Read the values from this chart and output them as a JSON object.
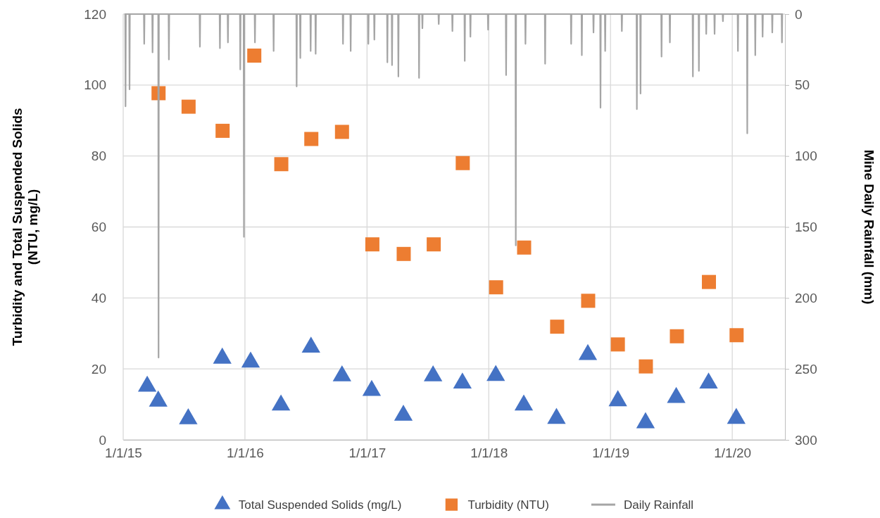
{
  "chart_data": {
    "type": "scatter",
    "ylabel": "Turbidity and Total Suspended Solids\n(NTU, mg/L)",
    "y2label": "Mine Daily Rainfall (mm)",
    "xlim": [
      "2015-01-01",
      "2020-06-07"
    ],
    "xticks": [
      {
        "value": "2015-01-01",
        "label": "1/1/15"
      },
      {
        "value": "2016-01-01",
        "label": "1/1/16"
      },
      {
        "value": "2017-01-01",
        "label": "1/1/17"
      },
      {
        "value": "2018-01-01",
        "label": "1/1/18"
      },
      {
        "value": "2019-01-01",
        "label": "1/1/19"
      },
      {
        "value": "2020-01-01",
        "label": "1/1/20"
      }
    ],
    "ylim": [
      0,
      120
    ],
    "yticks": [
      0,
      20,
      40,
      60,
      80,
      100,
      120
    ],
    "y2lim": [
      300,
      0
    ],
    "y2ticks": [
      0,
      50,
      100,
      150,
      200,
      250,
      300
    ],
    "grid": true,
    "legend": "bottom",
    "series": [
      {
        "name": "Total Suspended Solids (mg/L)",
        "marker": "triangle",
        "color": "#4472c4",
        "x": [
          "2015-03-14",
          "2015-04-16",
          "2015-07-15",
          "2015-10-25",
          "2016-01-18",
          "2016-04-18",
          "2016-07-17",
          "2016-10-18",
          "2017-01-15",
          "2017-04-20",
          "2017-07-18",
          "2017-10-14",
          "2018-01-22",
          "2018-04-16",
          "2018-07-23",
          "2018-10-25",
          "2019-01-23",
          "2019-04-16",
          "2019-07-17",
          "2019-10-22",
          "2020-01-13"
        ],
        "values": [
          15.1,
          10.9,
          5.9,
          23.0,
          21.9,
          9.8,
          26.1,
          18.0,
          13.9,
          6.9,
          18.0,
          16.0,
          18.1,
          9.8,
          6.0,
          24.0,
          11.0,
          4.8,
          11.9,
          16.0,
          6.0
        ]
      },
      {
        "name": "Turbidity (NTU)",
        "marker": "square",
        "color": "#ed7d31",
        "x": [
          "2015-04-17",
          "2015-07-16",
          "2015-10-26",
          "2016-01-29",
          "2016-04-19",
          "2016-07-18",
          "2016-10-18",
          "2017-01-17",
          "2017-04-21",
          "2017-07-20",
          "2017-10-15",
          "2018-01-23",
          "2018-04-17",
          "2018-07-25",
          "2018-10-26",
          "2019-01-23",
          "2019-04-17",
          "2019-07-19",
          "2019-10-23",
          "2020-01-14"
        ],
        "values": [
          97.7,
          93.9,
          87.1,
          108.3,
          77.7,
          84.8,
          86.8,
          55.1,
          52.4,
          55.1,
          78.0,
          43.0,
          54.2,
          31.9,
          39.2,
          26.9,
          20.7,
          29.2,
          44.5,
          29.5
        ]
      },
      {
        "name": "Daily Rainfall",
        "type": "line",
        "marker": "none",
        "axis": "y2",
        "color": "#a5a5a5",
        "x": [
          "2015-01-07",
          "2015-01-08",
          "2015-01-09",
          "2015-01-19",
          "2015-01-20",
          "2015-01-21",
          "2015-03-04",
          "2015-03-05",
          "2015-03-06",
          "2015-03-29",
          "2015-03-30",
          "2015-03-31",
          "2015-04-16",
          "2015-04-17",
          "2015-04-18",
          "2015-05-17",
          "2015-05-18",
          "2015-05-19",
          "2015-08-18",
          "2015-08-19",
          "2015-08-20",
          "2015-10-17",
          "2015-10-18",
          "2015-10-19",
          "2015-11-10",
          "2015-11-11",
          "2015-11-12",
          "2015-12-17",
          "2015-12-18",
          "2015-12-19",
          "2015-12-28",
          "2015-12-29",
          "2015-12-30",
          "2016-01-30",
          "2016-01-31",
          "2016-02-01",
          "2016-03-26",
          "2016-03-27",
          "2016-03-28",
          "2016-06-03",
          "2016-06-04",
          "2016-06-05",
          "2016-06-14",
          "2016-06-15",
          "2016-06-16",
          "2016-07-15",
          "2016-07-16",
          "2016-07-17",
          "2016-07-30",
          "2016-07-31",
          "2016-08-01",
          "2016-10-20",
          "2016-10-21",
          "2016-10-22",
          "2016-11-12",
          "2016-11-13",
          "2016-11-14",
          "2017-01-04",
          "2017-01-05",
          "2017-01-06",
          "2017-01-22",
          "2017-01-23",
          "2017-01-24",
          "2017-03-02",
          "2017-03-03",
          "2017-03-04",
          "2017-03-16",
          "2017-03-17",
          "2017-03-18",
          "2017-04-04",
          "2017-04-05",
          "2017-04-06",
          "2017-06-05",
          "2017-06-06",
          "2017-06-07",
          "2017-06-15",
          "2017-06-16",
          "2017-06-17",
          "2017-08-03",
          "2017-08-04",
          "2017-08-05",
          "2017-09-13",
          "2017-09-14",
          "2017-09-15",
          "2017-10-20",
          "2017-10-21",
          "2017-10-22",
          "2017-11-06",
          "2017-11-07",
          "2017-11-08",
          "2017-12-29",
          "2017-12-30",
          "2017-12-31",
          "2018-02-21",
          "2018-02-22",
          "2018-02-23",
          "2018-03-22",
          "2018-03-23",
          "2018-03-24",
          "2018-04-20",
          "2018-04-21",
          "2018-04-22",
          "2018-06-18",
          "2018-06-19",
          "2018-06-20",
          "2018-09-04",
          "2018-09-05",
          "2018-09-06",
          "2018-10-06",
          "2018-10-07",
          "2018-10-08",
          "2018-11-10",
          "2018-11-11",
          "2018-11-12",
          "2018-12-01",
          "2018-12-02",
          "2018-12-03",
          "2018-12-15",
          "2018-12-16",
          "2018-12-17",
          "2019-02-03",
          "2019-02-04",
          "2019-02-05",
          "2019-03-20",
          "2019-03-21",
          "2019-03-22",
          "2019-03-31",
          "2019-04-01",
          "2019-04-02",
          "2019-06-02",
          "2019-06-03",
          "2019-06-04",
          "2019-06-27",
          "2019-06-28",
          "2019-06-29",
          "2019-09-04",
          "2019-09-05",
          "2019-09-06",
          "2019-09-22",
          "2019-09-23",
          "2019-09-24",
          "2019-10-14",
          "2019-10-15",
          "2019-10-16",
          "2019-11-08",
          "2019-11-09",
          "2019-11-10",
          "2019-12-03",
          "2019-12-04",
          "2019-12-05",
          "2020-01-17",
          "2020-01-18",
          "2020-01-19",
          "2020-02-14",
          "2020-02-15",
          "2020-02-16",
          "2020-03-09",
          "2020-03-10",
          "2020-03-11",
          "2020-03-31",
          "2020-04-01",
          "2020-04-02",
          "2020-04-29",
          "2020-04-30",
          "2020-05-01",
          "2020-05-28",
          "2020-05-29",
          "2020-05-30"
        ],
        "values": [
          0,
          65,
          0,
          0,
          53,
          0,
          0,
          21,
          0,
          0,
          27,
          0,
          0,
          242,
          0,
          0,
          32,
          0,
          0,
          23,
          0,
          0,
          24,
          0,
          0,
          20,
          0,
          0,
          39,
          0,
          0,
          157,
          0,
          0,
          20,
          0,
          0,
          26,
          0,
          0,
          51,
          0,
          0,
          31,
          0,
          0,
          26,
          0,
          0,
          28,
          0,
          0,
          21,
          0,
          0,
          26,
          0,
          0,
          21,
          0,
          0,
          18,
          0,
          0,
          34,
          0,
          0,
          36,
          0,
          0,
          44,
          0,
          0,
          45,
          0,
          0,
          10,
          0,
          0,
          7,
          0,
          0,
          12,
          0,
          0,
          33,
          0,
          0,
          16,
          0,
          0,
          11,
          0,
          0,
          43,
          0,
          0,
          163,
          0,
          0,
          21,
          0,
          0,
          35,
          0,
          0,
          21,
          0,
          0,
          29,
          0,
          0,
          13,
          0,
          0,
          66,
          0,
          0,
          26,
          0,
          0,
          12,
          0,
          0,
          67,
          0,
          0,
          56,
          0,
          0,
          30,
          0,
          0,
          20,
          0,
          0,
          44,
          0,
          0,
          40,
          0,
          0,
          14,
          0,
          0,
          14,
          0,
          0,
          5,
          0,
          0,
          26,
          0,
          0,
          84,
          0,
          0,
          29,
          0,
          0,
          16,
          0,
          0,
          13,
          0,
          0,
          20,
          0
        ]
      }
    ]
  }
}
